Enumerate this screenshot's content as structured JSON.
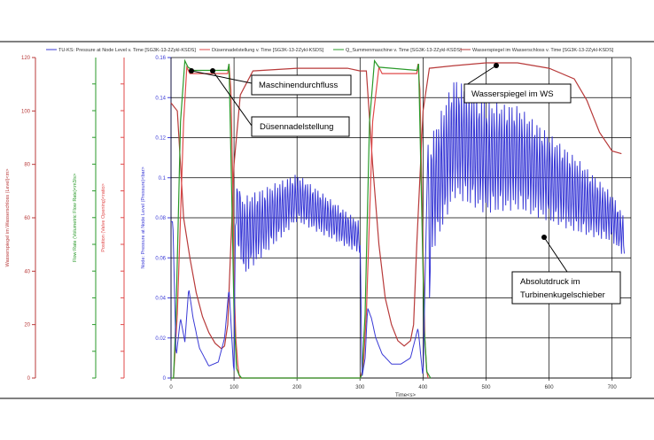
{
  "colors": {
    "pressure": "#3a3ad6",
    "valve": "#e04a4a",
    "flow": "#2a9a2a",
    "water": "#b83a3a",
    "grid": "#000000",
    "frame": "#555555"
  },
  "legend": {
    "pressure": "TU-KS: Pressure at Node Level v. Time [SG3K-13-2Zykl-KSDS]",
    "valve": "Düsennadelstellung v. Time [SG3K-13-2Zykl-KSDS]",
    "flow": "Q_Summenmaschine v. Time [SG3K-13-2Zykl-KSDS]",
    "water": "Wasserspiegel im Wasserschloss v. Time [SG3K-13-2Zykl-KSDS]"
  },
  "annotations": {
    "flow": "Maschinendurchfluss",
    "valve": "Düsennadelstellung",
    "water": "Wasserspiegel im WS",
    "pressure_line1": "Absolutdruck im",
    "pressure_line2": "Turbinenkugelschieber"
  },
  "chart_data": {
    "type": "line",
    "xlabel": "Time<s>",
    "xlim": [
      0,
      730
    ],
    "xticks": [
      "0",
      "100",
      "200",
      "300",
      "400",
      "500",
      "600",
      "700"
    ],
    "axes": [
      {
        "key": "water",
        "label": "Wasserspiegel im Wasserschloss (Level)<m>",
        "ticks": [
          "0",
          "20",
          "40",
          "60",
          "80",
          "100",
          "120"
        ],
        "range": [
          0,
          120
        ]
      },
      {
        "key": "flow",
        "label": "Flow Rate (Volumetric Flow Rate)<m3/s>",
        "ticks": [],
        "range": [
          0,
          1
        ]
      },
      {
        "key": "valve",
        "label": "Position (Valve Opening)<ratio>",
        "ticks": [],
        "range": [
          0,
          1
        ]
      },
      {
        "key": "pressure",
        "label": "Node: Pressure at Node Level (Pressure)<bar>",
        "ticks": [
          "0",
          "0.02",
          "0.04",
          "0.06",
          "0.08",
          "0.1",
          "0.12",
          "0.14",
          "0.16"
        ],
        "range": [
          0,
          0.16
        ]
      }
    ],
    "grid": true,
    "series": [
      {
        "name": "TU-KS: Pressure at Node Level v. Time [SG3K-13-2Zykl-KSDS]",
        "key": "pressure",
        "x": [
          0,
          3,
          8,
          15,
          22,
          28,
          35,
          45,
          60,
          75,
          85,
          92,
          98,
          100,
          102,
          105,
          108,
          110,
          112,
          200,
          300,
          303,
          308,
          312,
          318,
          325,
          335,
          350,
          365,
          380,
          392,
          400,
          403,
          406,
          408,
          410,
          412,
          450,
          500,
          550,
          600,
          650,
          700,
          720
        ],
        "y": [
          0.078,
          0.078,
          0.01,
          0.03,
          0.018,
          0.045,
          0.03,
          0.015,
          0.006,
          0.008,
          0.02,
          0.045,
          0.012,
          0.0,
          0.075,
          0.09,
          0.068,
          0.09,
          0.07,
          0.09,
          0.07,
          0.0,
          0.01,
          0.035,
          0.03,
          0.02,
          0.012,
          0.007,
          0.007,
          0.01,
          0.025,
          0.0,
          0.045,
          0.09,
          0.12,
          0.045,
          0.09,
          0.12,
          0.11,
          0.11,
          0.1,
          0.09,
          0.08,
          0.07
        ],
        "amplitude": [
          0,
          0,
          0,
          0,
          0,
          0,
          0,
          0,
          0,
          0,
          0,
          0,
          0,
          0,
          0,
          0.012,
          0.012,
          0.02,
          0.02,
          0.012,
          0.008,
          0,
          0,
          0,
          0,
          0,
          0,
          0,
          0,
          0,
          0,
          0,
          0,
          0,
          0,
          0.025,
          0.03,
          0.03,
          0.028,
          0.026,
          0.022,
          0.018,
          0.012,
          0.01
        ]
      },
      {
        "name": "Düsennadelstellung v. Time [SG3K-13-2Zykl-KSDS]",
        "key": "valve",
        "x": [
          0,
          4,
          10,
          20,
          25,
          30,
          35,
          90,
          92,
          95,
          98,
          100,
          103,
          106,
          108,
          110,
          300,
          305,
          310,
          320,
          330,
          335,
          390,
          392,
          395,
          400,
          403,
          406,
          408
        ],
        "y": [
          0,
          0,
          0.2,
          0.8,
          0.97,
          0.95,
          0.95,
          0.95,
          0.98,
          0.9,
          0.6,
          0.3,
          0.12,
          0.04,
          0.01,
          0,
          0,
          0.03,
          0.2,
          0.8,
          0.97,
          0.95,
          0.95,
          0.98,
          0.9,
          0.4,
          0.12,
          0.02,
          0
        ]
      },
      {
        "name": "Q_Summenmaschine v. Time [SG3K-13-2Zykl-KSDS]",
        "key": "flow",
        "x": [
          0,
          4,
          8,
          15,
          22,
          27,
          35,
          90,
          92,
          96,
          100,
          104,
          108,
          112,
          300,
          303,
          308,
          315,
          323,
          330,
          390,
          393,
          397,
          402,
          406,
          412
        ],
        "y": [
          0,
          0,
          0.2,
          0.8,
          0.99,
          0.97,
          0.96,
          0.96,
          0.98,
          0.6,
          0.2,
          0.03,
          0.01,
          0,
          0,
          0.01,
          0.2,
          0.8,
          0.99,
          0.97,
          0.96,
          0.98,
          0.6,
          0.15,
          0.02,
          0
        ]
      },
      {
        "name": "Wasserspiegel im Wasserschloss v. Time [SG3K-13-2Zykl-KSDS]",
        "key": "water",
        "x": [
          0,
          10,
          15,
          20,
          30,
          40,
          50,
          60,
          70,
          80,
          85,
          90,
          95,
          100,
          110,
          130,
          200,
          280,
          300,
          310,
          320,
          330,
          340,
          350,
          360,
          370,
          380,
          385,
          390,
          400,
          410,
          450,
          500,
          550,
          600,
          640,
          660,
          680,
          700,
          715
        ],
        "y": [
          103,
          100,
          80,
          60,
          45,
          32,
          23,
          17,
          13,
          11,
          12,
          20,
          50,
          80,
          106,
          115,
          116,
          116,
          115,
          115,
          80,
          50,
          30,
          20,
          14,
          12,
          14,
          20,
          50,
          100,
          116,
          117,
          118,
          118,
          116,
          112,
          104,
          92,
          85,
          84
        ]
      }
    ]
  }
}
